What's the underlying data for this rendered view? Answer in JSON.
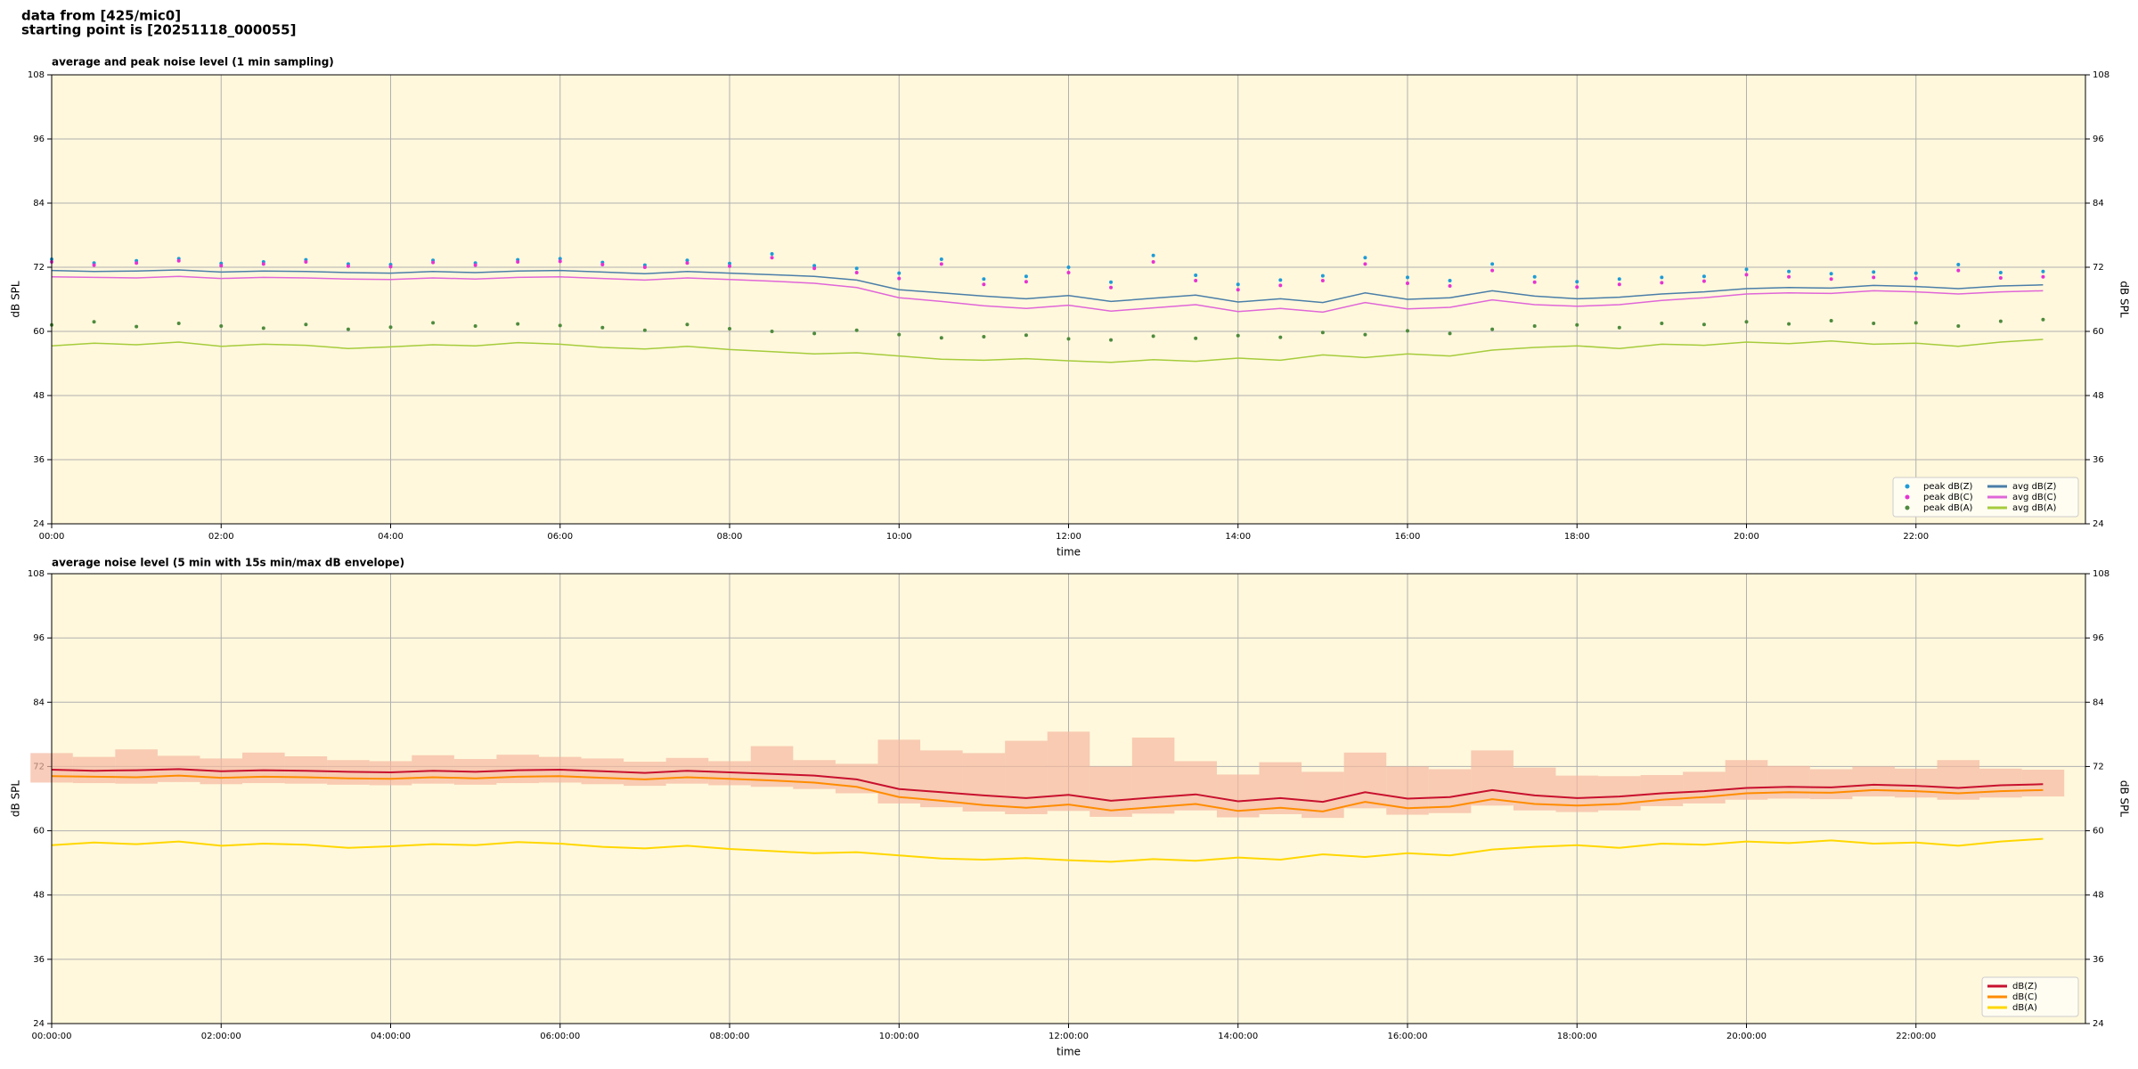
{
  "header": {
    "title": "data from [425/mic0]",
    "subtitle": "starting point is [20251118_000055]"
  },
  "chart_data": [
    {
      "type": "line",
      "title": "average and peak noise level (1 min sampling)",
      "xlabel": "time",
      "ylabel": "dB SPL",
      "y2label": "dB SPL",
      "background": "#fff8dc",
      "grid": true,
      "legend": "lower right",
      "legend_columns": 2,
      "x": [
        0,
        0.5,
        1,
        1.5,
        2,
        2.5,
        3,
        3.5,
        4,
        4.5,
        5,
        5.5,
        6,
        6.5,
        7,
        7.5,
        8,
        8.5,
        9,
        9.5,
        10,
        10.5,
        11,
        11.5,
        12,
        12.5,
        13,
        13.5,
        14,
        14.5,
        15,
        15.5,
        16,
        16.5,
        17,
        17.5,
        18,
        18.5,
        19,
        19.5,
        20,
        20.5,
        21,
        21.5,
        22,
        22.5,
        23,
        23.5
      ],
      "xlim": [
        0,
        24
      ],
      "xticks": [
        {
          "value": 0,
          "label": "00:00"
        },
        {
          "value": 2,
          "label": "02:00"
        },
        {
          "value": 4,
          "label": "04:00"
        },
        {
          "value": 6,
          "label": "06:00"
        },
        {
          "value": 8,
          "label": "08:00"
        },
        {
          "value": 10,
          "label": "10:00"
        },
        {
          "value": 12,
          "label": "12:00"
        },
        {
          "value": 14,
          "label": "14:00"
        },
        {
          "value": 16,
          "label": "16:00"
        },
        {
          "value": 18,
          "label": "18:00"
        },
        {
          "value": 20,
          "label": "20:00"
        },
        {
          "value": 22,
          "label": "22:00"
        }
      ],
      "ylim": [
        24,
        108
      ],
      "yticks": [
        24,
        36,
        48,
        60,
        72,
        84,
        96,
        108
      ],
      "y2lim": [
        24,
        108
      ],
      "y2ticks": [
        24,
        36,
        48,
        60,
        72,
        84,
        96,
        108
      ],
      "series": [
        {
          "name": "peak dB(Z)",
          "style": "markers",
          "color": "#1f9bd7",
          "values": [
            73.5,
            72.8,
            73.2,
            73.6,
            72.7,
            73.0,
            73.4,
            72.6,
            72.5,
            73.3,
            72.8,
            73.4,
            73.6,
            72.9,
            72.4,
            73.3,
            72.7,
            74.5,
            72.3,
            71.8,
            70.9,
            73.5,
            69.8,
            70.3,
            72.0,
            69.2,
            74.2,
            70.5,
            68.8,
            69.6,
            70.4,
            73.8,
            70.1,
            69.5,
            72.6,
            70.2,
            69.3,
            69.8,
            70.1,
            70.3,
            71.6,
            71.2,
            70.8,
            71.1,
            70.9,
            72.5,
            71.0,
            71.2
          ]
        },
        {
          "name": "peak dB(C)",
          "style": "markers",
          "color": "#e633d1",
          "values": [
            73.0,
            72.4,
            72.8,
            73.2,
            72.3,
            72.6,
            73.0,
            72.2,
            72.1,
            72.9,
            72.4,
            73.0,
            73.1,
            72.5,
            72.0,
            72.8,
            72.2,
            73.8,
            71.8,
            71.0,
            69.9,
            72.6,
            68.8,
            69.3,
            71.0,
            68.2,
            73.0,
            69.5,
            67.8,
            68.6,
            69.5,
            72.6,
            69.0,
            68.5,
            71.4,
            69.2,
            68.3,
            68.8,
            69.1,
            69.4,
            70.6,
            70.2,
            69.8,
            70.1,
            69.9,
            71.4,
            70.0,
            70.2
          ]
        },
        {
          "name": "peak dB(A)",
          "style": "markers",
          "color": "#4e8a3e",
          "values": [
            61.2,
            61.8,
            60.9,
            61.5,
            61.0,
            60.6,
            61.3,
            60.4,
            60.8,
            61.6,
            61.0,
            61.4,
            61.1,
            60.7,
            60.2,
            61.3,
            60.5,
            60.0,
            59.6,
            60.2,
            59.4,
            58.8,
            59.0,
            59.3,
            58.6,
            58.4,
            59.1,
            58.7,
            59.2,
            58.9,
            59.8,
            59.4,
            60.1,
            59.6,
            60.4,
            61.0,
            61.2,
            60.7,
            61.5,
            61.3,
            61.8,
            61.4,
            62.0,
            61.5,
            61.6,
            61.0,
            61.9,
            62.2
          ]
        },
        {
          "name": "avg dB(Z)",
          "style": "line",
          "color": "#4a7ea8",
          "values": [
            71.4,
            71.2,
            71.3,
            71.5,
            71.1,
            71.3,
            71.2,
            71.0,
            70.9,
            71.2,
            71.0,
            71.3,
            71.4,
            71.1,
            70.8,
            71.2,
            70.9,
            70.6,
            70.3,
            69.6,
            67.8,
            67.2,
            66.6,
            66.1,
            66.7,
            65.6,
            66.2,
            66.8,
            65.5,
            66.1,
            65.4,
            67.2,
            66.0,
            66.3,
            67.6,
            66.6,
            66.1,
            66.4,
            67.0,
            67.4,
            68.0,
            68.2,
            68.1,
            68.6,
            68.4,
            68.0,
            68.5,
            68.7
          ]
        },
        {
          "name": "avg dB(C)",
          "style": "line",
          "color": "#e066d8",
          "values": [
            70.2,
            70.1,
            70.0,
            70.3,
            69.9,
            70.1,
            70.0,
            69.8,
            69.7,
            70.0,
            69.8,
            70.1,
            70.2,
            69.9,
            69.6,
            70.0,
            69.7,
            69.4,
            69.0,
            68.2,
            66.3,
            65.6,
            64.8,
            64.3,
            64.9,
            63.8,
            64.4,
            65.0,
            63.7,
            64.3,
            63.6,
            65.4,
            64.2,
            64.5,
            65.9,
            65.0,
            64.7,
            65.0,
            65.8,
            66.3,
            67.0,
            67.2,
            67.1,
            67.6,
            67.4,
            67.0,
            67.4,
            67.6
          ]
        },
        {
          "name": "avg dB(A)",
          "style": "line",
          "color": "#a6cc3c",
          "values": [
            57.3,
            57.8,
            57.5,
            58.0,
            57.2,
            57.6,
            57.4,
            56.8,
            57.1,
            57.5,
            57.3,
            57.9,
            57.6,
            57.0,
            56.7,
            57.2,
            56.6,
            56.2,
            55.8,
            56.0,
            55.4,
            54.8,
            54.6,
            54.9,
            54.5,
            54.2,
            54.7,
            54.4,
            55.0,
            54.6,
            55.6,
            55.1,
            55.8,
            55.4,
            56.5,
            57.0,
            57.3,
            56.8,
            57.6,
            57.4,
            58.0,
            57.7,
            58.2,
            57.6,
            57.8,
            57.2,
            58.0,
            58.5
          ]
        }
      ]
    },
    {
      "type": "line",
      "title": "average noise level (5 min with 15s min/max dB envelope)",
      "xlabel": "time",
      "ylabel": "dB SPL",
      "y2label": "dB SPL",
      "background": "#fff8dc",
      "grid": true,
      "legend": "lower right",
      "legend_columns": 1,
      "x": [
        0,
        0.5,
        1,
        1.5,
        2,
        2.5,
        3,
        3.5,
        4,
        4.5,
        5,
        5.5,
        6,
        6.5,
        7,
        7.5,
        8,
        8.5,
        9,
        9.5,
        10,
        10.5,
        11,
        11.5,
        12,
        12.5,
        13,
        13.5,
        14,
        14.5,
        15,
        15.5,
        16,
        16.5,
        17,
        17.5,
        18,
        18.5,
        19,
        19.5,
        20,
        20.5,
        21,
        21.5,
        22,
        22.5,
        23,
        23.5
      ],
      "xlim": [
        0,
        24
      ],
      "xticks": [
        {
          "value": 0,
          "label": "00:00:00"
        },
        {
          "value": 2,
          "label": "02:00:00"
        },
        {
          "value": 4,
          "label": "04:00:00"
        },
        {
          "value": 6,
          "label": "06:00:00"
        },
        {
          "value": 8,
          "label": "08:00:00"
        },
        {
          "value": 10,
          "label": "10:00:00"
        },
        {
          "value": 12,
          "label": "12:00:00"
        },
        {
          "value": 14,
          "label": "14:00:00"
        },
        {
          "value": 16,
          "label": "16:00:00"
        },
        {
          "value": 18,
          "label": "18:00:00"
        },
        {
          "value": 20,
          "label": "20:00:00"
        },
        {
          "value": 22,
          "label": "22:00:00"
        }
      ],
      "ylim": [
        24,
        108
      ],
      "yticks": [
        24,
        36,
        48,
        60,
        72,
        84,
        96,
        108
      ],
      "y2lim": [
        24,
        108
      ],
      "y2ticks": [
        24,
        36,
        48,
        60,
        72,
        84,
        96,
        108
      ],
      "series": [
        {
          "name": "dB(Z)",
          "style": "line",
          "color": "#c8102e",
          "values": [
            71.4,
            71.2,
            71.3,
            71.5,
            71.1,
            71.3,
            71.2,
            71.0,
            70.9,
            71.2,
            71.0,
            71.3,
            71.4,
            71.1,
            70.8,
            71.2,
            70.9,
            70.6,
            70.3,
            69.6,
            67.8,
            67.2,
            66.6,
            66.1,
            66.7,
            65.6,
            66.2,
            66.8,
            65.5,
            66.1,
            65.4,
            67.2,
            66.0,
            66.3,
            67.6,
            66.6,
            66.1,
            66.4,
            67.0,
            67.4,
            68.0,
            68.2,
            68.1,
            68.6,
            68.4,
            68.0,
            68.5,
            68.7
          ]
        },
        {
          "name": "dB(C)",
          "style": "line",
          "color": "#ff8c00",
          "values": [
            70.2,
            70.1,
            70.0,
            70.3,
            69.9,
            70.1,
            70.0,
            69.8,
            69.7,
            70.0,
            69.8,
            70.1,
            70.2,
            69.9,
            69.6,
            70.0,
            69.7,
            69.4,
            69.0,
            68.2,
            66.3,
            65.6,
            64.8,
            64.3,
            64.9,
            63.8,
            64.4,
            65.0,
            63.7,
            64.3,
            63.6,
            65.4,
            64.2,
            64.5,
            65.9,
            65.0,
            64.7,
            65.0,
            65.8,
            66.3,
            67.0,
            67.2,
            67.1,
            67.6,
            67.4,
            67.0,
            67.4,
            67.6
          ],
          "envelope": {
            "color": "#f5b8a0",
            "min": [
              69.0,
              68.9,
              68.8,
              69.1,
              68.7,
              68.9,
              68.8,
              68.6,
              68.5,
              68.8,
              68.6,
              68.9,
              69.0,
              68.7,
              68.4,
              68.8,
              68.5,
              68.2,
              67.8,
              67.0,
              65.1,
              64.4,
              63.6,
              63.1,
              63.7,
              62.6,
              63.2,
              63.8,
              62.5,
              63.1,
              62.4,
              64.2,
              63.0,
              63.3,
              64.7,
              63.8,
              63.5,
              63.8,
              64.6,
              65.1,
              65.8,
              66.0,
              65.9,
              66.4,
              66.2,
              65.8,
              66.2,
              66.4
            ],
            "max": [
              74.5,
              73.8,
              75.2,
              74.0,
              73.5,
              74.6,
              73.9,
              73.2,
              73.0,
              74.1,
              73.4,
              74.2,
              73.8,
              73.5,
              72.9,
              73.6,
              73.0,
              75.8,
              73.2,
              72.5,
              77.0,
              75.0,
              74.5,
              76.8,
              78.5,
              72.0,
              77.4,
              73.0,
              70.5,
              72.8,
              71.0,
              74.6,
              72.0,
              71.5,
              75.0,
              71.8,
              70.3,
              70.2,
              70.4,
              71.0,
              73.2,
              72.1,
              71.5,
              72.0,
              71.6,
              73.2,
              71.6,
              71.4
            ]
          }
        },
        {
          "name": "dB(A)",
          "style": "line",
          "color": "#ffd700",
          "values": [
            57.3,
            57.8,
            57.5,
            58.0,
            57.2,
            57.6,
            57.4,
            56.8,
            57.1,
            57.5,
            57.3,
            57.9,
            57.6,
            57.0,
            56.7,
            57.2,
            56.6,
            56.2,
            55.8,
            56.0,
            55.4,
            54.8,
            54.6,
            54.9,
            54.5,
            54.2,
            54.7,
            54.4,
            55.0,
            54.6,
            55.6,
            55.1,
            55.8,
            55.4,
            56.5,
            57.0,
            57.3,
            56.8,
            57.6,
            57.4,
            58.0,
            57.7,
            58.2,
            57.6,
            57.8,
            57.2,
            58.0,
            58.5
          ]
        }
      ]
    }
  ]
}
